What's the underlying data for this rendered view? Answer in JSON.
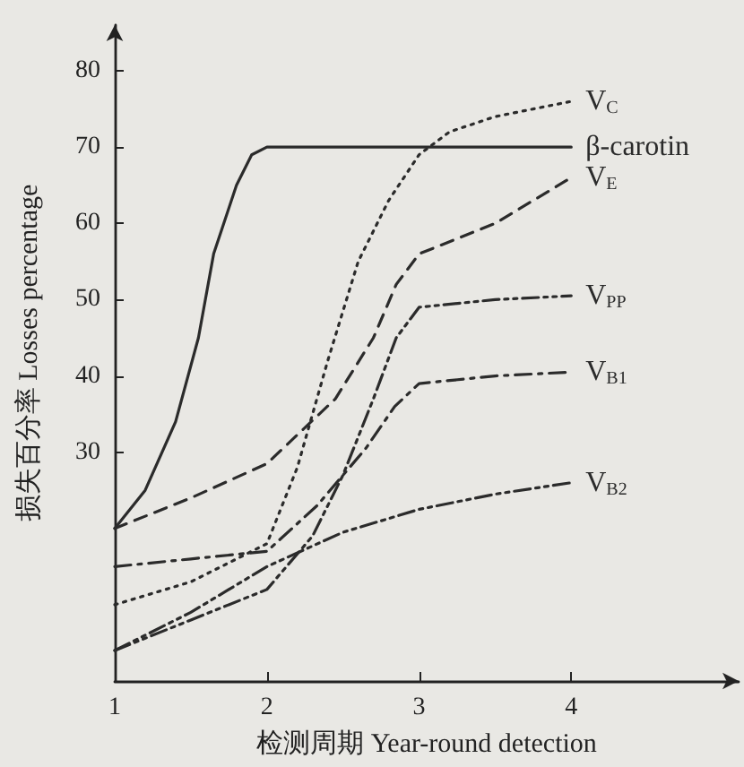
{
  "chart_data": {
    "type": "line",
    "xlabel": "检测周期 Year-round detection",
    "ylabel": "损失百分率 Losses percentage",
    "xlim": [
      1,
      5.1
    ],
    "xticks": [
      1,
      2,
      3,
      4
    ],
    "ylim": [
      0,
      86
    ],
    "yticks": [
      30,
      40,
      50,
      60,
      70,
      80
    ],
    "grid": false,
    "legend": false,
    "marker": "none",
    "series": [
      {
        "name": "V$_{C}$",
        "color": "#2b2b2b",
        "line_style": "dotted",
        "x": [
          1,
          1.5,
          2,
          2.2,
          2.4,
          2.6,
          2.8,
          3,
          3.2,
          3.5,
          4
        ],
        "values": [
          10,
          13,
          18,
          28,
          42,
          55,
          63,
          69,
          72,
          74,
          76
        ]
      },
      {
        "name": "β-carotin",
        "color": "#2b2b2b",
        "line_style": "solid",
        "x": [
          1,
          1.2,
          1.4,
          1.55,
          1.65,
          1.8,
          1.9,
          2,
          4
        ],
        "values": [
          20,
          25,
          34,
          45,
          56,
          65,
          69,
          70,
          70
        ]
      },
      {
        "name": "V$_{E}$",
        "color": "#2b2b2b",
        "line_style": "dashed",
        "x": [
          1,
          1.5,
          2,
          2.45,
          2.7,
          2.85,
          3,
          3.5,
          4
        ],
        "values": [
          20,
          24,
          28.5,
          37,
          45,
          52,
          56,
          60,
          66
        ]
      },
      {
        "name": "V$_{PP}$",
        "color": "#2b2b2b",
        "line_style": "dashdotdot",
        "x": [
          1,
          1.5,
          2,
          2.3,
          2.5,
          2.7,
          2.85,
          3,
          3.5,
          4
        ],
        "values": [
          4,
          8,
          12,
          19,
          27,
          37,
          45,
          49,
          50,
          50.5
        ]
      },
      {
        "name": "V$_{B1}$",
        "color": "#2b2b2b",
        "line_style": "dashdot",
        "x": [
          1,
          1.5,
          2,
          2.33,
          2.65,
          2.84,
          3,
          3.5,
          4
        ],
        "values": [
          15,
          16,
          17,
          23,
          30.5,
          36,
          39,
          40,
          40.5
        ]
      },
      {
        "name": "V$_{B2}$",
        "color": "#2b2b2b",
        "line_style": "dashdotdot",
        "x": [
          1,
          1.5,
          2,
          2.5,
          3,
          3.5,
          4
        ],
        "values": [
          4,
          9,
          15,
          19.5,
          22.5,
          24.5,
          26
        ]
      }
    ]
  }
}
